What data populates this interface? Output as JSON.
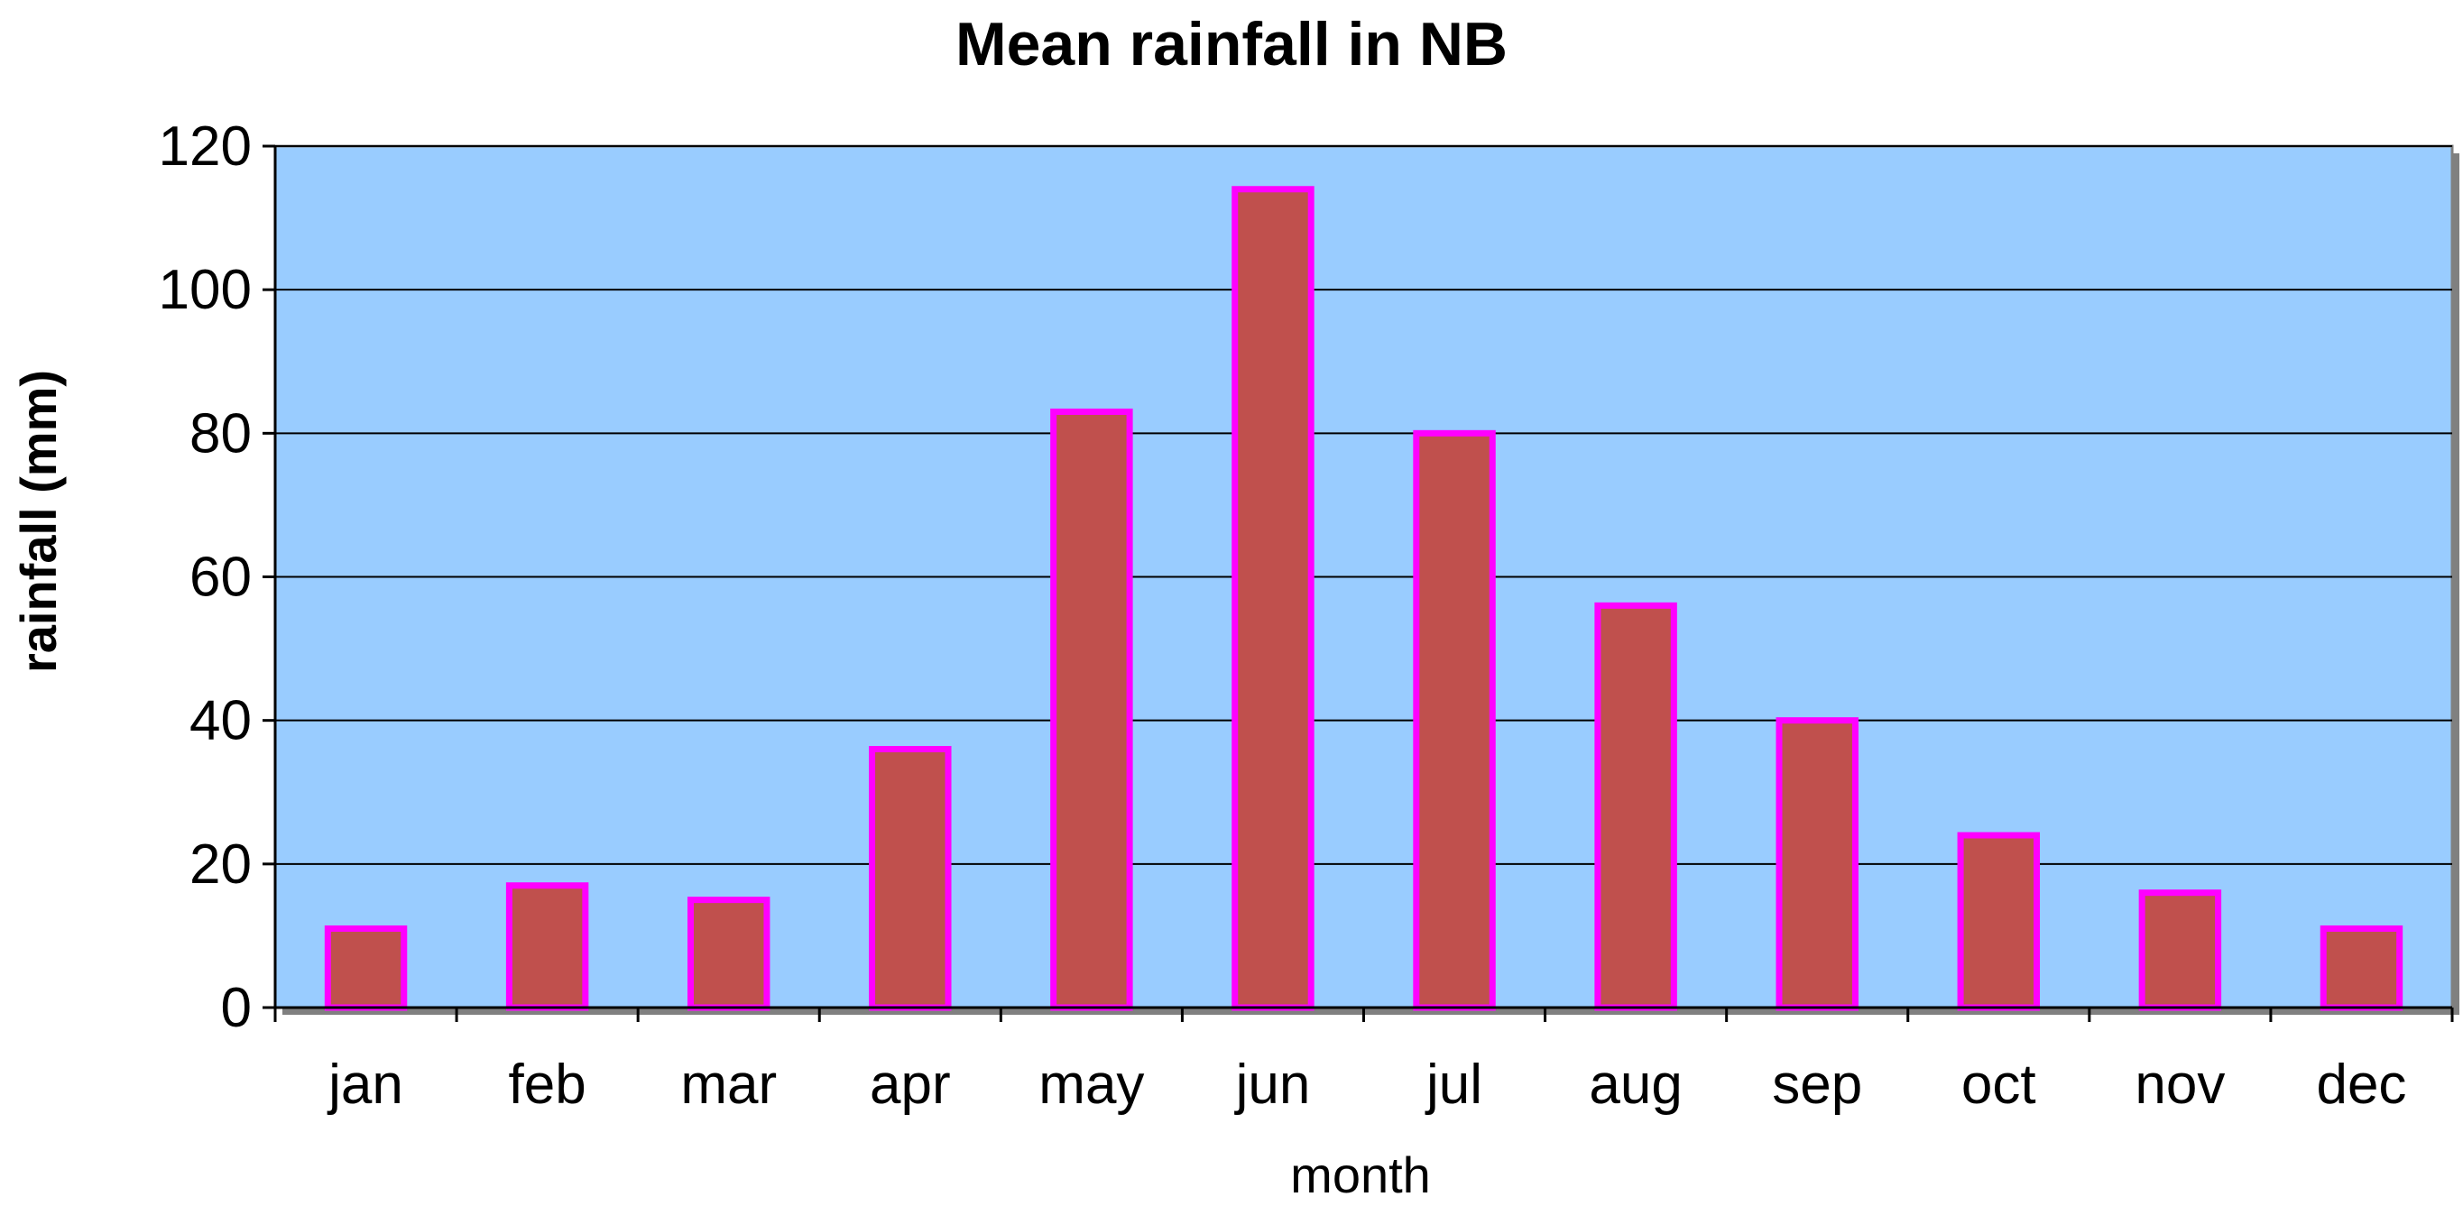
{
  "chart_data": {
    "type": "bar",
    "title": "Mean rainfall in NB",
    "xlabel": "month",
    "ylabel": "rainfall (mm)",
    "categories": [
      "jan",
      "feb",
      "mar",
      "apr",
      "may",
      "jun",
      "jul",
      "aug",
      "sep",
      "oct",
      "nov",
      "dec"
    ],
    "values": [
      11,
      17,
      15,
      36,
      83,
      114,
      80,
      56,
      40,
      24,
      16,
      11
    ],
    "ylim": [
      0,
      120
    ],
    "yticks": [
      "0",
      "20",
      "40",
      "60",
      "80",
      "100",
      "120"
    ],
    "grid": true,
    "legend": "none",
    "colors": {
      "plot_background": "#99ccff",
      "bar_fill": "#c0504d",
      "bar_border": "#ff00ff",
      "gridline": "#000000",
      "axis": "#000000"
    }
  }
}
